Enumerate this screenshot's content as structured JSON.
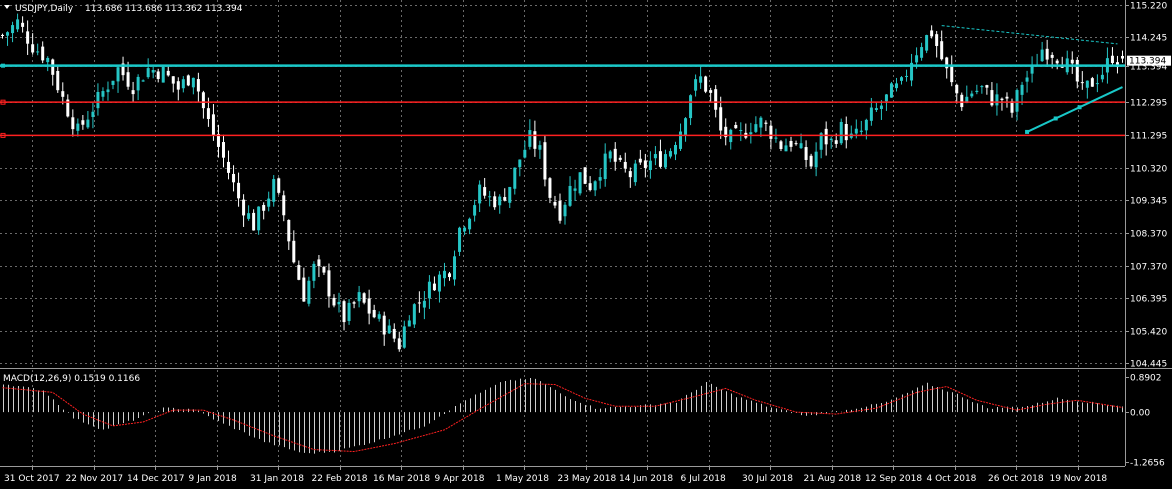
{
  "header": {
    "title": "USDJPY,Daily",
    "ohlc": "113.686 113.686 113.362 113.394"
  },
  "colors": {
    "background": "#000000",
    "grid": "#6a6a6a",
    "bull": "#26c6c6",
    "bear": "#ffffff",
    "support_line": "#ff2020",
    "cyan_line": "#19c8c8",
    "macd_hist": "#cfcfcf",
    "macd_signal": "#ff2020",
    "price_tag_bg": "#ffffff",
    "price_tag_text": "#000000"
  },
  "chart_data": [
    {
      "type": "candlestick",
      "symbol": "USDJPY",
      "timeframe": "Daily",
      "y_ticks": [
        "115.220",
        "114.245",
        "113.394",
        "112.295",
        "111.295",
        "110.320",
        "109.345",
        "108.370",
        "107.370",
        "106.395",
        "105.420",
        "104.445"
      ],
      "current_price": "113.394",
      "x_ticks": [
        "31 Oct 2017",
        "22 Nov 2017",
        "14 Dec 2017",
        "9 Jan 2018",
        "31 Jan 2018",
        "22 Feb 2018",
        "16 Mar 2018",
        "9 Apr 2018",
        "1 May 2018",
        "23 May 2018",
        "14 Jun 2018",
        "6 Jul 2018",
        "30 Jul 2018",
        "21 Aug 2018",
        "12 Sep 2018",
        "4 Oct 2018",
        "26 Oct 2018",
        "19 Nov 2018"
      ],
      "ylim": [
        104.445,
        115.22
      ],
      "close_path": [
        [
          0,
          114.3
        ],
        [
          3,
          114.7
        ],
        [
          6,
          114.0
        ],
        [
          9,
          113.6
        ],
        [
          12,
          112.4
        ],
        [
          15,
          111.4
        ],
        [
          17,
          111.9
        ],
        [
          20,
          112.6
        ],
        [
          23,
          113.3
        ],
        [
          26,
          112.8
        ],
        [
          29,
          113.3
        ],
        [
          32,
          113.2
        ],
        [
          35,
          112.7
        ],
        [
          38,
          113.2
        ],
        [
          40,
          112.1
        ],
        [
          42,
          111.3
        ],
        [
          44,
          110.6
        ],
        [
          47,
          109.4
        ],
        [
          50,
          108.6
        ],
        [
          52,
          109.2
        ],
        [
          54,
          109.8
        ],
        [
          56,
          108.9
        ],
        [
          58,
          107.5
        ],
        [
          60,
          106.5
        ],
        [
          62,
          107.3
        ],
        [
          64,
          107.0
        ],
        [
          66,
          106.3
        ],
        [
          68,
          105.8
        ],
        [
          71,
          106.4
        ],
        [
          73,
          106.0
        ],
        [
          75,
          105.7
        ],
        [
          77,
          105.4
        ],
        [
          79,
          105.0
        ],
        [
          81,
          106.0
        ],
        [
          83,
          106.3
        ],
        [
          86,
          106.9
        ],
        [
          89,
          107.3
        ],
        [
          91,
          108.5
        ],
        [
          93,
          109.0
        ],
        [
          95,
          109.6
        ],
        [
          97,
          109.4
        ],
        [
          99,
          109.3
        ],
        [
          101,
          109.8
        ],
        [
          103,
          110.6
        ],
        [
          105,
          111.2
        ],
        [
          107,
          110.8
        ],
        [
          109,
          109.5
        ],
        [
          111,
          109.0
        ],
        [
          113,
          109.7
        ],
        [
          115,
          110.1
        ],
        [
          117,
          109.8
        ],
        [
          119,
          110.3
        ],
        [
          121,
          110.7
        ],
        [
          123,
          110.3
        ],
        [
          125,
          110.1
        ],
        [
          127,
          110.3
        ],
        [
          129,
          110.5
        ],
        [
          131,
          110.6
        ],
        [
          133,
          110.9
        ],
        [
          135,
          111.5
        ],
        [
          137,
          112.6
        ],
        [
          139,
          113.0
        ],
        [
          141,
          112.5
        ],
        [
          143,
          111.4
        ],
        [
          145,
          111.2
        ],
        [
          147,
          111.3
        ],
        [
          149,
          111.6
        ],
        [
          151,
          111.7
        ],
        [
          153,
          111.4
        ],
        [
          155,
          111.0
        ],
        [
          157,
          111.1
        ],
        [
          159,
          110.8
        ],
        [
          161,
          110.4
        ],
        [
          163,
          111.2
        ],
        [
          165,
          111.1
        ],
        [
          167,
          111.5
        ],
        [
          169,
          111.2
        ],
        [
          171,
          111.4
        ],
        [
          173,
          111.9
        ],
        [
          175,
          112.2
        ],
        [
          177,
          112.6
        ],
        [
          179,
          112.8
        ],
        [
          181,
          113.6
        ],
        [
          183,
          114.1
        ],
        [
          185,
          114.4
        ],
        [
          187,
          113.6
        ],
        [
          189,
          112.8
        ],
        [
          191,
          112.3
        ],
        [
          193,
          112.6
        ],
        [
          195,
          112.7
        ],
        [
          197,
          112.4
        ],
        [
          199,
          112.4
        ],
        [
          201,
          112.0
        ],
        [
          203,
          112.9
        ],
        [
          205,
          113.2
        ],
        [
          207,
          113.9
        ],
        [
          209,
          113.8
        ],
        [
          211,
          113.6
        ],
        [
          213,
          113.2
        ],
        [
          215,
          112.6
        ],
        [
          217,
          112.9
        ],
        [
          219,
          113.2
        ],
        [
          221,
          113.7
        ],
        [
          223,
          113.394
        ]
      ]
    },
    {
      "type": "macd",
      "label": "MACD(12,26,9) 0.1519 0.1166",
      "y_ticks": [
        "0.8902",
        "0.00",
        "-1.2656"
      ],
      "ylim": [
        -1.2656,
        0.8902
      ],
      "hist_path": [
        [
          0,
          0.72
        ],
        [
          8,
          0.55
        ],
        [
          14,
          -0.15
        ],
        [
          20,
          -0.45
        ],
        [
          26,
          -0.2
        ],
        [
          32,
          0.1
        ],
        [
          38,
          0.08
        ],
        [
          44,
          -0.3
        ],
        [
          52,
          -0.75
        ],
        [
          60,
          -1.05
        ],
        [
          66,
          -1.0
        ],
        [
          74,
          -0.75
        ],
        [
          84,
          -0.35
        ],
        [
          92,
          0.3
        ],
        [
          100,
          0.8
        ],
        [
          106,
          0.85
        ],
        [
          112,
          0.4
        ],
        [
          118,
          0.1
        ],
        [
          126,
          0.15
        ],
        [
          134,
          0.25
        ],
        [
          140,
          0.75
        ],
        [
          146,
          0.4
        ],
        [
          152,
          0.15
        ],
        [
          160,
          -0.1
        ],
        [
          168,
          0.05
        ],
        [
          176,
          0.25
        ],
        [
          184,
          0.72
        ],
        [
          190,
          0.45
        ],
        [
          196,
          0.1
        ],
        [
          204,
          0.15
        ],
        [
          210,
          0.35
        ],
        [
          216,
          0.25
        ],
        [
          223,
          0.1519
        ]
      ],
      "signal_path": [
        [
          0,
          0.62
        ],
        [
          10,
          0.5
        ],
        [
          16,
          -0.05
        ],
        [
          22,
          -0.35
        ],
        [
          28,
          -0.25
        ],
        [
          34,
          0.05
        ],
        [
          40,
          0.05
        ],
        [
          46,
          -0.2
        ],
        [
          54,
          -0.6
        ],
        [
          62,
          -0.95
        ],
        [
          70,
          -1.0
        ],
        [
          78,
          -0.8
        ],
        [
          88,
          -0.45
        ],
        [
          96,
          0.15
        ],
        [
          104,
          0.72
        ],
        [
          110,
          0.7
        ],
        [
          116,
          0.35
        ],
        [
          122,
          0.15
        ],
        [
          130,
          0.15
        ],
        [
          138,
          0.4
        ],
        [
          144,
          0.6
        ],
        [
          150,
          0.3
        ],
        [
          158,
          0.0
        ],
        [
          166,
          -0.05
        ],
        [
          174,
          0.1
        ],
        [
          182,
          0.5
        ],
        [
          188,
          0.65
        ],
        [
          194,
          0.3
        ],
        [
          202,
          0.05
        ],
        [
          208,
          0.2
        ],
        [
          214,
          0.3
        ],
        [
          223,
          0.1166
        ]
      ]
    }
  ],
  "annotations": {
    "support_lines": [
      112.295,
      111.295
    ],
    "horizontal_cyan": 113.394,
    "upper_trendline": [
      [
        187,
        114.6
      ],
      [
        222,
        114.05
      ]
    ],
    "lower_trendline": [
      [
        204,
        111.4
      ],
      [
        223,
        112.75
      ]
    ]
  }
}
